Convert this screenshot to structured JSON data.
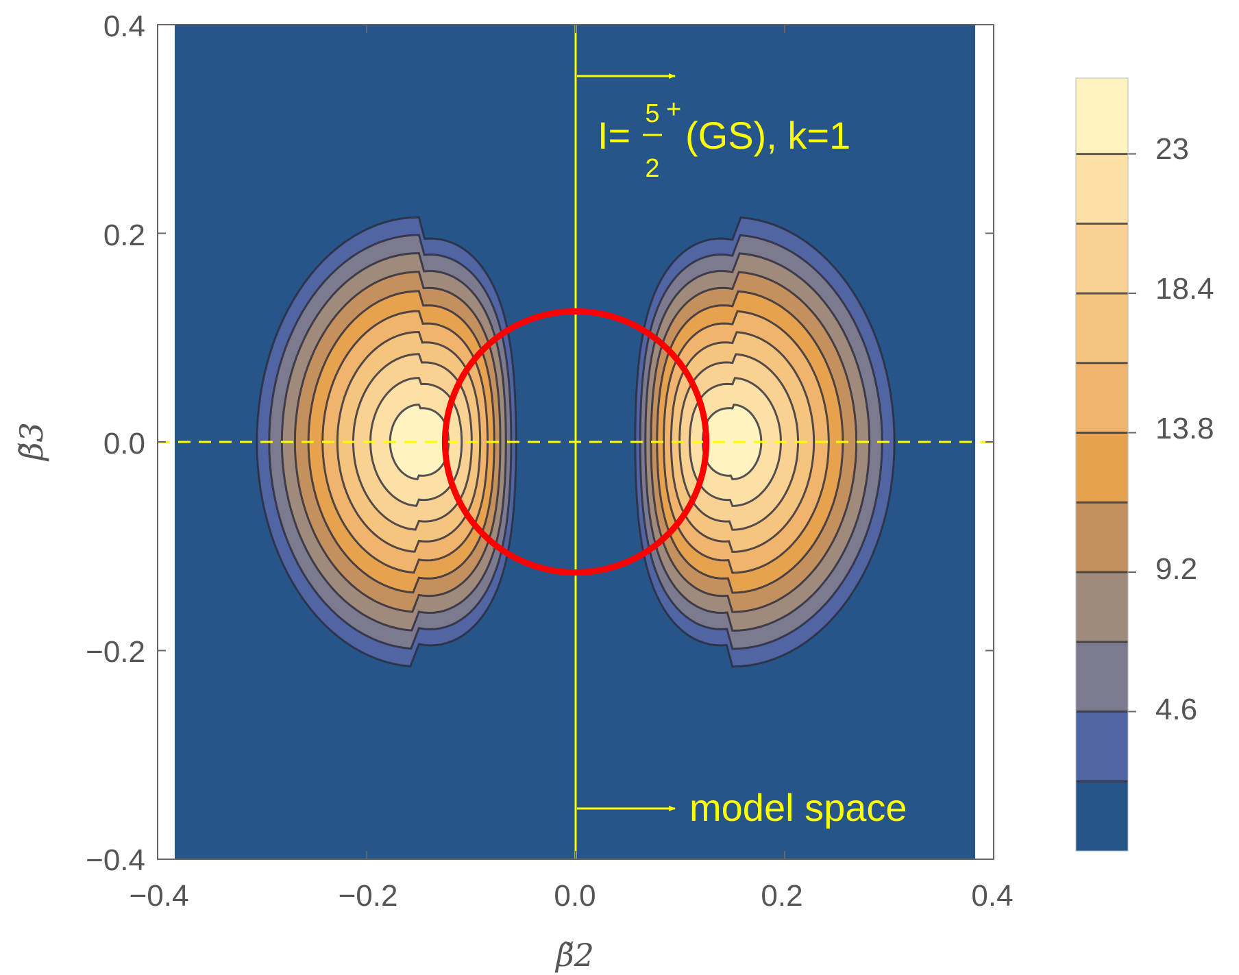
{
  "chart_data": {
    "type": "contour",
    "xlabel": "β̃2",
    "ylabel": "β̃3",
    "xlim": [
      -0.4,
      0.4
    ],
    "ylim": [
      -0.4,
      0.4
    ],
    "x_ticks": [
      "−0.4",
      "−0.2",
      "0.0",
      "0.2",
      "0.4"
    ],
    "y_ticks": [
      "0.4",
      "0.2",
      "0.0",
      "−0.2",
      "−0.4"
    ],
    "x_tick_values": [
      -0.4,
      -0.2,
      0.0,
      0.2,
      0.4
    ],
    "y_tick_values": [
      0.4,
      0.2,
      0.0,
      -0.2,
      -0.4
    ],
    "peaks": [
      {
        "x": -0.15,
        "y": 0.0
      },
      {
        "x": 0.15,
        "y": 0.0
      }
    ],
    "contour_levels": [
      2.3,
      4.6,
      6.9,
      9.2,
      11.5,
      13.8,
      16.1,
      18.4,
      20.7,
      23.0
    ],
    "colorbar": {
      "ticks": [
        "23",
        "18.4",
        "13.8",
        "9.2",
        "4.6"
      ],
      "tick_values": [
        23,
        18.4,
        13.8,
        9.2,
        4.6
      ],
      "range": [
        0,
        25.5
      ]
    },
    "colors": {
      "background": "#26558a",
      "red_circle": "#ff0000",
      "annotation": "#ffff00",
      "band_colors": [
        "#26558a",
        "#5165a5",
        "#7b7a8e",
        "#a08a7c",
        "#c4915e",
        "#e6a24f",
        "#f0b46d",
        "#f5c47f",
        "#f9d293",
        "#fde0a6",
        "#fff3c0"
      ]
    },
    "circle": {
      "center_x": 0.0,
      "center_y": 0.0,
      "radius": 0.125
    },
    "vertical_line_x": 0.0,
    "dashed_line_y": 0.0,
    "annotations": {
      "state_prefix": "I=",
      "frac_num": "5",
      "frac_den": "2",
      "parity": "+",
      "state_suffix": "(GS),  k=1",
      "model_space": "model space"
    }
  }
}
